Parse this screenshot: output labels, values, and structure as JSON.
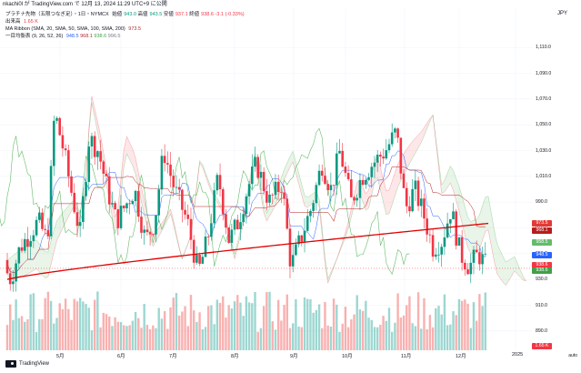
{
  "header": {
    "published": "nkachi0l が TradingView.com で 12月 13, 2024 11:29 UTC+9 に公開"
  },
  "legend": {
    "symbol": "プラチナ先物（五限つなぎ足）・1日・NYMCX",
    "o_label": "始値",
    "o": "943.0",
    "h_label": "高値",
    "h": "943.5",
    "l_label": "安値",
    "l": "937.1",
    "c_label": "終値",
    "c": "938.6",
    "chg": "-3.1 (-0.33%)",
    "vol_label": "出来高",
    "vol": "1.65 K",
    "ma_label": "MA Ribbon (SMA, 20, SMA, 50, SMA, 100, SMA, 200)",
    "ma_val": "973.5",
    "ichi_label": "一目均衡表 (9, 26, 52, 26)",
    "ichi_v1": "948.5",
    "ichi_v2": "968.1",
    "ichi_v3": "938.6",
    "ichi_v4": "996.5"
  },
  "axis": {
    "corner": "JPY",
    "ticks": [
      "1,110.0",
      "1,090.0",
      "1,070.0",
      "1,050.0",
      "1,030.0",
      "1,010.0",
      "990.0",
      "970.0",
      "950.0",
      "930.0",
      "910.0",
      "890.0"
    ],
    "badges": [
      {
        "label": "973.5",
        "color": "#e53935"
      },
      {
        "label": "968.1",
        "color": "#b71c1c"
      },
      {
        "label": "958.5",
        "color": "#66bb6a"
      },
      {
        "label": "948.5",
        "color": "#2962ff"
      },
      {
        "label": "938.6",
        "color": "#f23645"
      },
      {
        "label": "938.6",
        "color": "#43a047"
      },
      {
        "label": "1.65 K",
        "color": "#f23645"
      }
    ],
    "months": [
      "5月",
      "6月",
      "7月",
      "8月",
      "9月",
      "10月",
      "11月",
      "12月",
      "2025"
    ],
    "auto": "auto"
  },
  "footer": {
    "brand": "TradingView"
  },
  "chart_data": {
    "type": "candlestick",
    "title": "プラチナ先物（五限つなぎ足）・1日・NYMCX",
    "ylim": [
      880,
      1120
    ],
    "last_close": 938.6,
    "ma200_end": 973.5
  }
}
